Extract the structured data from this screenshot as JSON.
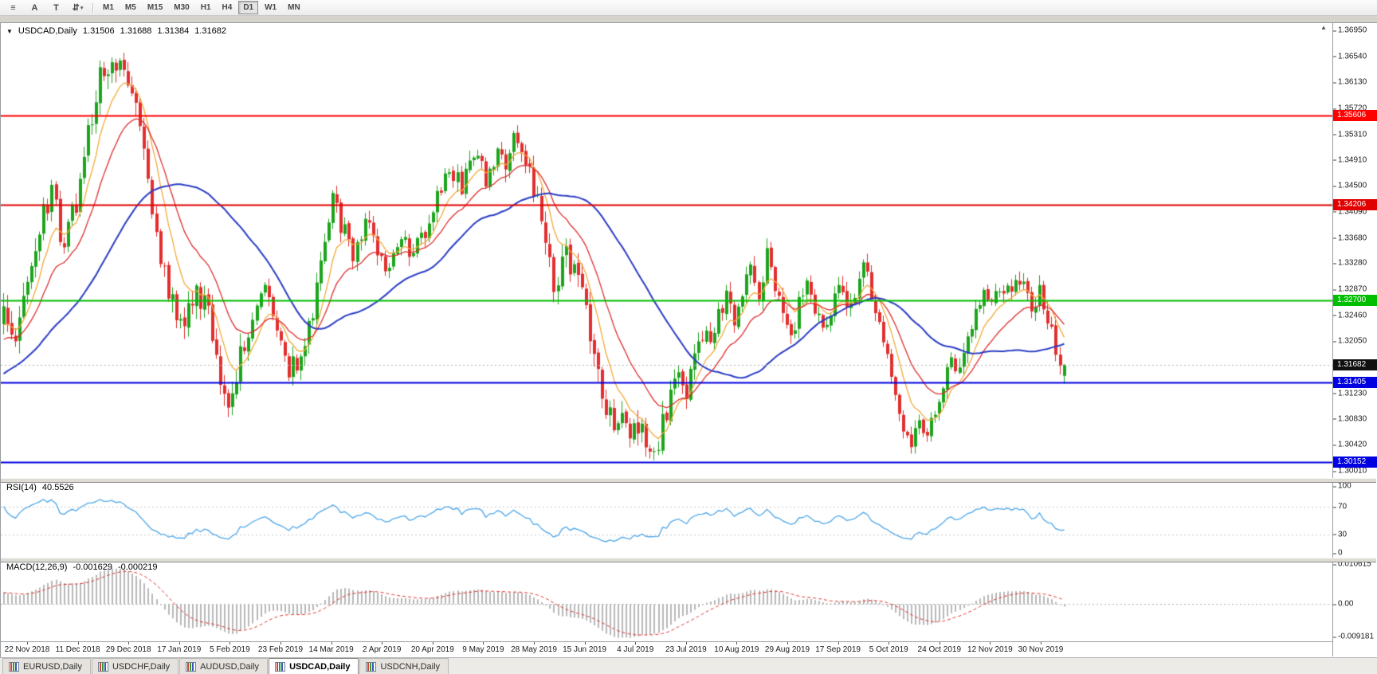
{
  "toolbar": {
    "tool_buttons": [
      {
        "name": "chart-list",
        "glyph": "≡"
      },
      {
        "name": "font-label-a",
        "glyph": "A"
      },
      {
        "name": "text-label-t",
        "glyph": "T"
      },
      {
        "name": "cursor-mode",
        "glyph": "⇵",
        "caret": "▾"
      }
    ],
    "timeframes": [
      {
        "label": "M1"
      },
      {
        "label": "M5"
      },
      {
        "label": "M15"
      },
      {
        "label": "M30"
      },
      {
        "label": "H1"
      },
      {
        "label": "H4"
      },
      {
        "label": "D1",
        "active": true
      },
      {
        "label": "W1"
      },
      {
        "label": "MN"
      }
    ]
  },
  "chart": {
    "menu_glyph": "▼",
    "symbol": "USDCAD,Daily",
    "open": "1.31506",
    "high": "1.31688",
    "low": "1.31384",
    "close": "1.31682",
    "shift_marker_glyph": "▲"
  },
  "chart_data": {
    "type": "candlestick",
    "symbol": "USDCAD",
    "timeframe": "Daily",
    "bars_visible": 265,
    "last_bar_ohlc": {
      "open": 1.31506,
      "high": 1.31688,
      "low": 1.31384,
      "close": 1.31682
    },
    "price_axis_ticks": [
      "1.36950",
      "1.36540",
      "1.36130",
      "1.35720",
      "1.35310",
      "1.34910",
      "1.34500",
      "1.34090",
      "1.33680",
      "1.33280",
      "1.32870",
      "1.32460",
      "1.32050",
      "1.31650",
      "1.31230",
      "1.30830",
      "1.30420",
      "1.30010"
    ],
    "x_axis_labels": [
      "22 Nov 2018",
      "11 Dec 2018",
      "29 Dec 2018",
      "17 Jan 2019",
      "5 Feb 2019",
      "23 Feb 2019",
      "14 Mar 2019",
      "2 Apr 2019",
      "20 Apr 2019",
      "9 May 2019",
      "28 May 2019",
      "15 Jun 2019",
      "4 Jul 2019",
      "23 Jul 2019",
      "10 Aug 2019",
      "29 Aug 2019",
      "17 Sep 2019",
      "5 Oct 2019",
      "24 Oct 2019",
      "12 Nov 2019",
      "30 Nov 2019"
    ],
    "horizontal_lines": [
      {
        "value": 1.35606,
        "label": "1.35606",
        "color": "#FF0000",
        "kind": "resistance"
      },
      {
        "value": 1.34206,
        "label": "1.34206",
        "color": "#E00000",
        "kind": "resistance"
      },
      {
        "value": 1.327,
        "label": "1.32700",
        "color": "#00BE00",
        "kind": "pivot"
      },
      {
        "value": 1.31405,
        "label": "1.31405",
        "color": "#0000E0",
        "kind": "support"
      },
      {
        "value": 1.30152,
        "label": "1.30152",
        "color": "#0000E0",
        "kind": "support"
      }
    ],
    "current_price": {
      "value": 1.31682,
      "label": "1.31682"
    },
    "moving_averages": [
      {
        "type": "ema",
        "period": 8,
        "color": "#F2A93B",
        "width": 1.3
      },
      {
        "type": "ema",
        "period": 18,
        "color": "#DD2C2C",
        "width": 1.3
      },
      {
        "type": "sma",
        "period": 40,
        "color": "#2A3CC4",
        "width": 2
      }
    ],
    "price_path_anchors": [
      [
        -40,
        1.306
      ],
      [
        -25,
        1.3125
      ],
      [
        -12,
        1.3185
      ],
      [
        0,
        1.324
      ],
      [
        3,
        1.3185
      ],
      [
        6,
        1.33
      ],
      [
        9,
        1.3385
      ],
      [
        12,
        1.343
      ],
      [
        15,
        1.336
      ],
      [
        18,
        1.3425
      ],
      [
        21,
        1.354
      ],
      [
        24,
        1.362
      ],
      [
        27,
        1.3655
      ],
      [
        30,
        1.364
      ],
      [
        33,
        1.356
      ],
      [
        36,
        1.345
      ],
      [
        39,
        1.333
      ],
      [
        42,
        1.3265
      ],
      [
        45,
        1.3225
      ],
      [
        48,
        1.329
      ],
      [
        51,
        1.325
      ],
      [
        54,
        1.3155
      ],
      [
        56,
        1.3095
      ],
      [
        59,
        1.318
      ],
      [
        62,
        1.325
      ],
      [
        65,
        1.33
      ],
      [
        68,
        1.3235
      ],
      [
        71,
        1.3165
      ],
      [
        74,
        1.3175
      ],
      [
        77,
        1.3255
      ],
      [
        80,
        1.336
      ],
      [
        82,
        1.3435
      ],
      [
        84,
        1.339
      ],
      [
        87,
        1.3345
      ],
      [
        90,
        1.339
      ],
      [
        93,
        1.335
      ],
      [
        96,
        1.332
      ],
      [
        99,
        1.336
      ],
      [
        102,
        1.334
      ],
      [
        105,
        1.338
      ],
      [
        108,
        1.344
      ],
      [
        111,
        1.348
      ],
      [
        114,
        1.345
      ],
      [
        117,
        1.349
      ],
      [
        120,
        1.3465
      ],
      [
        123,
        1.35
      ],
      [
        125,
        1.347
      ],
      [
        127,
        1.354
      ],
      [
        130,
        1.348
      ],
      [
        133,
        1.343
      ],
      [
        135,
        1.334
      ],
      [
        137,
        1.3295
      ],
      [
        140,
        1.334
      ],
      [
        142,
        1.332
      ],
      [
        145,
        1.326
      ],
      [
        148,
        1.316
      ],
      [
        150,
        1.3105
      ],
      [
        152,
        1.3065
      ],
      [
        154,
        1.3095
      ],
      [
        156,
        1.305
      ],
      [
        158,
        1.3075
      ],
      [
        160,
        1.3035
      ],
      [
        162,
        1.3025
      ],
      [
        164,
        1.308
      ],
      [
        166,
        1.312
      ],
      [
        168,
        1.3145
      ],
      [
        170,
        1.313
      ],
      [
        172,
        1.3185
      ],
      [
        174,
        1.322
      ],
      [
        176,
        1.3195
      ],
      [
        178,
        1.324
      ],
      [
        180,
        1.327
      ],
      [
        182,
        1.3235
      ],
      [
        184,
        1.328
      ],
      [
        186,
        1.331
      ],
      [
        188,
        1.327
      ],
      [
        190,
        1.334
      ],
      [
        192,
        1.329
      ],
      [
        194,
        1.3245
      ],
      [
        196,
        1.3215
      ],
      [
        198,
        1.326
      ],
      [
        200,
        1.329
      ],
      [
        202,
        1.3245
      ],
      [
        204,
        1.3225
      ],
      [
        206,
        1.326
      ],
      [
        208,
        1.329
      ],
      [
        210,
        1.3255
      ],
      [
        212,
        1.329
      ],
      [
        214,
        1.332
      ],
      [
        216,
        1.3285
      ],
      [
        218,
        1.3235
      ],
      [
        220,
        1.3175
      ],
      [
        222,
        1.3115
      ],
      [
        224,
        1.3075
      ],
      [
        226,
        1.305
      ],
      [
        228,
        1.3085
      ],
      [
        230,
        1.306
      ],
      [
        232,
        1.3095
      ],
      [
        234,
        1.313
      ],
      [
        236,
        1.317
      ],
      [
        238,
        1.3155
      ],
      [
        240,
        1.3205
      ],
      [
        242,
        1.325
      ],
      [
        244,
        1.328
      ],
      [
        246,
        1.3265
      ],
      [
        248,
        1.33
      ],
      [
        250,
        1.3285
      ],
      [
        252,
        1.331
      ],
      [
        254,
        1.329
      ],
      [
        256,
        1.3255
      ],
      [
        258,
        1.328
      ],
      [
        260,
        1.324
      ],
      [
        262,
        1.319
      ],
      [
        264,
        1.31682
      ]
    ],
    "indicators": {
      "rsi": {
        "name": "RSI",
        "label": "RSI(14)",
        "value": "40.5526",
        "period": 14,
        "levels": [
          70,
          30
        ],
        "axis_ticks": [
          "100",
          "70",
          "30",
          "0"
        ],
        "color": "#4DA6E8",
        "range": [
          0,
          100
        ]
      },
      "macd": {
        "name": "MACD",
        "label": "MACD(12,26,9)",
        "value_main": "-0.001629",
        "value_signal": "-0.000219",
        "fast": 12,
        "slow": 26,
        "signal": 9,
        "axis_ticks": [
          {
            "label": "0.010615",
            "value": 0.010615
          },
          {
            "label": "0.00",
            "value": 0
          },
          {
            "label": "-0.009181",
            "value": -0.009181
          }
        ],
        "histogram_color": "#B8B8B8",
        "signal_color": "#E03131"
      }
    }
  },
  "tabs": [
    {
      "label": "EURUSD,Daily"
    },
    {
      "label": "USDCHF,Daily"
    },
    {
      "label": "AUDUSD,Daily"
    },
    {
      "label": "USDCAD,Daily",
      "active": true
    },
    {
      "label": "USDCNH,Daily"
    }
  ],
  "colors": {
    "candle_up": "#1CA41C",
    "candle_down": "#E22E2E",
    "current_tag": "#101010",
    "dotted_line": "#B0B0B0",
    "level_dash": "#C6C6C6"
  }
}
